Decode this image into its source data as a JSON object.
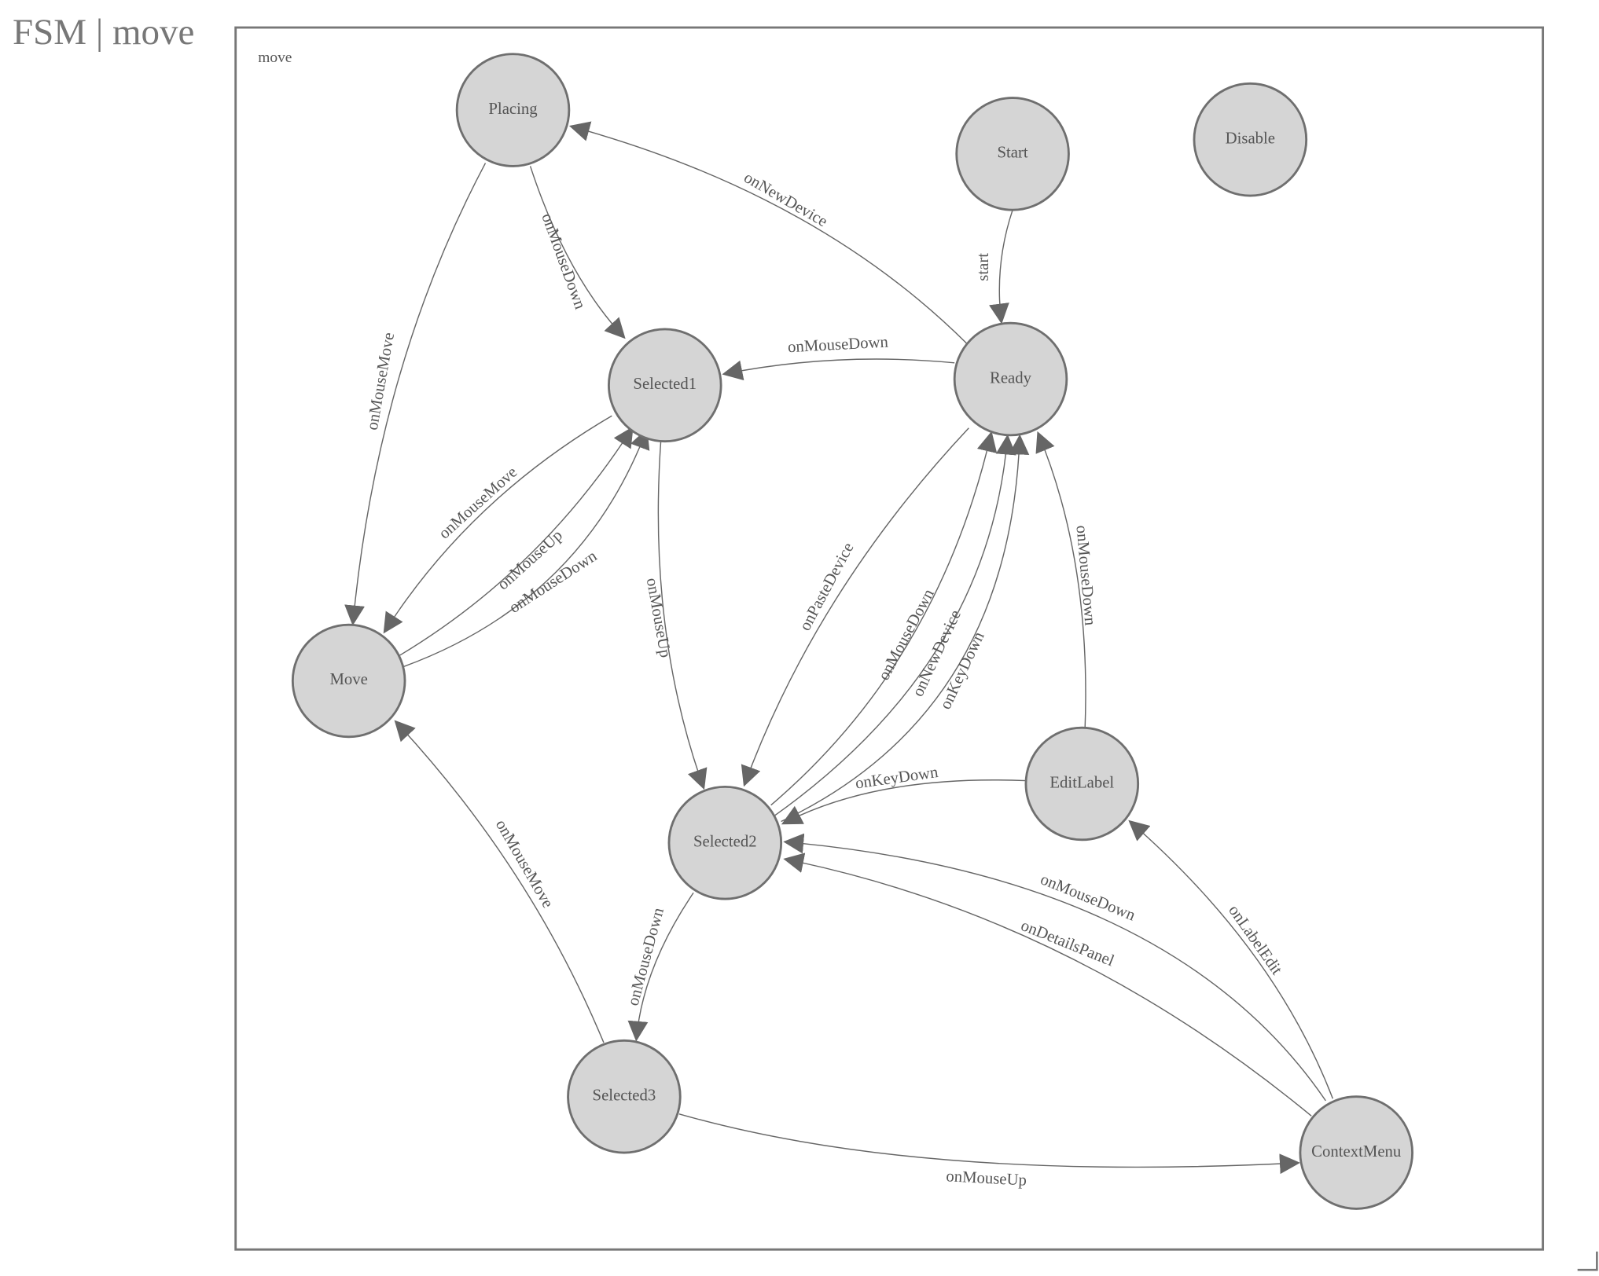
{
  "title": "FSM | move",
  "diagram": {
    "frame_label": "move",
    "node_fill": "#d5d5d5",
    "stroke_color": "#6f6f6f",
    "nodes": [
      {
        "id": "Placing",
        "label": "Placing"
      },
      {
        "id": "Start",
        "label": "Start"
      },
      {
        "id": "Disable",
        "label": "Disable"
      },
      {
        "id": "Selected1",
        "label": "Selected1"
      },
      {
        "id": "Ready",
        "label": "Ready"
      },
      {
        "id": "Move",
        "label": "Move"
      },
      {
        "id": "EditLabel",
        "label": "EditLabel"
      },
      {
        "id": "Selected2",
        "label": "Selected2"
      },
      {
        "id": "Selected3",
        "label": "Selected3"
      },
      {
        "id": "ContextMenu",
        "label": "ContextMenu"
      }
    ],
    "edges": [
      {
        "from": "Start",
        "to": "Ready",
        "label": "start"
      },
      {
        "from": "Ready",
        "to": "Placing",
        "label": "onNewDevice"
      },
      {
        "from": "Placing",
        "to": "Selected1",
        "label": "onMouseDown"
      },
      {
        "from": "Placing",
        "to": "Move",
        "label": "onMouseMove"
      },
      {
        "from": "Ready",
        "to": "Selected1",
        "label": "onMouseDown"
      },
      {
        "from": "Selected1",
        "to": "Move",
        "label": "onMouseMove"
      },
      {
        "from": "Move",
        "to": "Selected1",
        "label": "onMouseUp"
      },
      {
        "from": "Move",
        "to": "Selected1",
        "label": "onMouseDown"
      },
      {
        "from": "Selected1",
        "to": "Selected2",
        "label": "onMouseUp"
      },
      {
        "from": "Ready",
        "to": "Selected2",
        "label": "onPasteDevice"
      },
      {
        "from": "Selected2",
        "to": "Ready",
        "label": "onMouseDown"
      },
      {
        "from": "Selected2",
        "to": "Ready",
        "label": "onNewDevice"
      },
      {
        "from": "Selected2",
        "to": "Ready",
        "label": "onKeyDown"
      },
      {
        "from": "EditLabel",
        "to": "Ready",
        "label": "onMouseDown"
      },
      {
        "from": "EditLabel",
        "to": "Selected2",
        "label": "onKeyDown"
      },
      {
        "from": "ContextMenu",
        "to": "Selected2",
        "label": "onMouseDown"
      },
      {
        "from": "ContextMenu",
        "to": "Selected2",
        "label": "onDetailsPanel"
      },
      {
        "from": "ContextMenu",
        "to": "EditLabel",
        "label": "onLabelEdit"
      },
      {
        "from": "Selected2",
        "to": "Selected3",
        "label": "onMouseDown"
      },
      {
        "from": "Selected3",
        "to": "Move",
        "label": "onMouseMove"
      },
      {
        "from": "Selected3",
        "to": "ContextMenu",
        "label": "onMouseUp"
      }
    ]
  }
}
